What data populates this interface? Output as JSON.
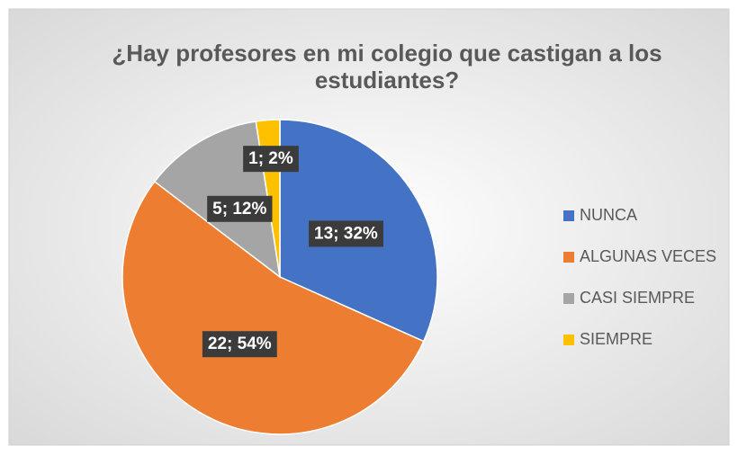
{
  "chart_data": {
    "type": "pie",
    "title": "¿Hay profesores en mi colegio que castigan a los estudiantes?",
    "categories": [
      "NUNCA",
      "ALGUNAS VECES",
      "CASI SIEMPRE",
      "SIEMPRE"
    ],
    "values": [
      13,
      22,
      5,
      1
    ],
    "value_labels": [
      "13; 32%",
      "22; 54%",
      "5; 12%",
      "1; 2%"
    ],
    "colors": [
      "#4472c4",
      "#ed7d31",
      "#a5a5a5",
      "#ffc000"
    ],
    "legend": "right"
  }
}
